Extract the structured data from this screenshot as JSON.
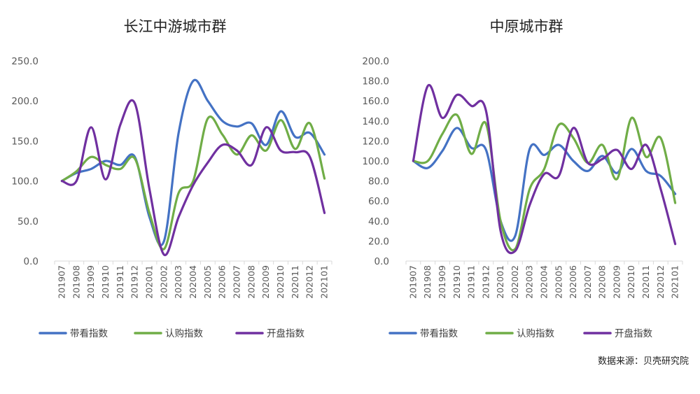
{
  "source_note": "数据来源：贝壳研究院",
  "chart_data": [
    {
      "type": "line",
      "title": "长江中游城市群",
      "ylim": [
        0,
        250
      ],
      "yticks": [
        "0.0",
        "50.0",
        "100.0",
        "150.0",
        "200.0",
        "250.0"
      ],
      "grid": false,
      "legend_position": "bottom",
      "categories": [
        "201907",
        "201908",
        "201909",
        "201910",
        "201911",
        "201912",
        "202001",
        "202002",
        "202003",
        "202004",
        "202005",
        "202006",
        "202007",
        "202008",
        "202009",
        "202010",
        "202011",
        "202012",
        "202101"
      ],
      "series": [
        {
          "name": "带看指数",
          "color": "#4472C4",
          "values": [
            100,
            110,
            115,
            125,
            120,
            130,
            55,
            25,
            160,
            225,
            200,
            175,
            168,
            172,
            145,
            187,
            155,
            160,
            133
          ]
        },
        {
          "name": "认购指数",
          "color": "#70AD47",
          "values": [
            100,
            112,
            130,
            120,
            115,
            128,
            60,
            15,
            85,
            100,
            178,
            158,
            133,
            157,
            138,
            176,
            140,
            172,
            103
          ]
        },
        {
          "name": "开盘指数",
          "color": "#7030A0",
          "values": [
            100,
            100,
            167,
            102,
            170,
            197,
            90,
            8,
            55,
            95,
            123,
            145,
            138,
            120,
            167,
            138,
            136,
            130,
            60
          ]
        }
      ]
    },
    {
      "type": "line",
      "title": "中原城市群",
      "ylim": [
        0,
        200
      ],
      "yticks": [
        "0.0",
        "20.0",
        "40.0",
        "60.0",
        "80.0",
        "100.0",
        "120.0",
        "140.0",
        "160.0",
        "180.0",
        "200.0"
      ],
      "grid": false,
      "legend_position": "bottom",
      "categories": [
        "201907",
        "201908",
        "201909",
        "201910",
        "201911",
        "201912",
        "202001",
        "202002",
        "202003",
        "202004",
        "202005",
        "202006",
        "202007",
        "202008",
        "202009",
        "202010",
        "202011",
        "202012",
        "202101"
      ],
      "series": [
        {
          "name": "带看指数",
          "color": "#4472C4",
          "values": [
            100,
            93,
            110,
            133,
            113,
            111,
            40,
            25,
            112,
            106,
            116,
            100,
            90,
            105,
            88,
            112,
            90,
            85,
            67
          ]
        },
        {
          "name": "认购指数",
          "color": "#70AD47",
          "values": [
            100,
            100,
            127,
            146,
            107,
            137,
            40,
            12,
            72,
            92,
            136,
            123,
            98,
            116,
            82,
            143,
            104,
            123,
            58
          ]
        },
        {
          "name": "开盘指数",
          "color": "#7030A0",
          "values": [
            100,
            175,
            143,
            166,
            155,
            150,
            30,
            10,
            56,
            87,
            85,
            133,
            98,
            102,
            111,
            92,
            116,
            72,
            17
          ]
        }
      ]
    }
  ]
}
